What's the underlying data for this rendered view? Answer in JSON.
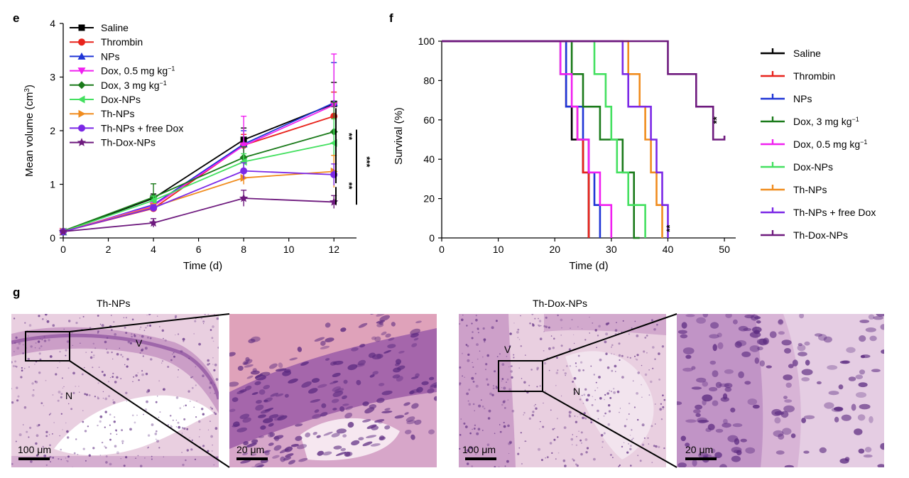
{
  "panels": {
    "e": "e",
    "f": "f",
    "g": "g"
  },
  "chart_data": [
    {
      "type": "line",
      "panel": "e",
      "xlabel": "Time (d)",
      "ylabel_main": "Mean volume (cm",
      "ylabel_sup": "3",
      "ylabel_end": ")",
      "xlim": [
        0,
        13
      ],
      "ylim": [
        0,
        4
      ],
      "xticks": [
        0,
        2,
        4,
        6,
        8,
        10,
        12
      ],
      "yticks": [
        0,
        1,
        2,
        3,
        4
      ],
      "x": [
        0,
        4,
        8,
        12
      ],
      "legend_position": "top-left",
      "series": [
        {
          "name": "Saline",
          "color": "#000000",
          "marker": "square",
          "values": [
            0.12,
            0.74,
            1.83,
            2.5
          ],
          "err": [
            0.02,
            0.08,
            0.22,
            0.4
          ]
        },
        {
          "name": "Thrombin",
          "color": "#e8231c",
          "marker": "circle",
          "values": [
            0.12,
            0.55,
            1.73,
            2.27
          ],
          "err": [
            0.02,
            0.06,
            0.2,
            0.45
          ]
        },
        {
          "name": "NPs",
          "color": "#1f35d6",
          "marker": "triangle-up",
          "values": [
            0.11,
            0.62,
            1.75,
            2.52
          ],
          "err": [
            0.02,
            0.07,
            0.25,
            0.75
          ]
        },
        {
          "name": "Dox, 0.5 mg kg",
          "name_sup": "−1",
          "color": "#f020f0",
          "marker": "triangle-down",
          "values": [
            0.12,
            0.6,
            1.72,
            2.48
          ],
          "err": [
            0.02,
            0.07,
            0.55,
            0.95
          ]
        },
        {
          "name": "Dox, 3 mg kg",
          "name_sup": "−1",
          "color": "#1a7a1a",
          "marker": "diamond",
          "values": [
            0.13,
            0.76,
            1.5,
            1.98
          ],
          "err": [
            0.02,
            0.25,
            0.2,
            0.55
          ]
        },
        {
          "name": "Dox-NPs",
          "color": "#44e060",
          "marker": "triangle-left",
          "values": [
            0.12,
            0.7,
            1.42,
            1.77
          ],
          "err": [
            0.02,
            0.08,
            0.15,
            0.45
          ]
        },
        {
          "name": "Th-NPs",
          "color": "#f08c1e",
          "marker": "triangle-right",
          "values": [
            0.12,
            0.58,
            1.12,
            1.24
          ],
          "err": [
            0.02,
            0.06,
            0.12,
            0.3
          ]
        },
        {
          "name": "Th-NPs + free Dox",
          "color": "#7b28e6",
          "marker": "circle",
          "values": [
            0.12,
            0.56,
            1.25,
            1.18
          ],
          "err": [
            0.02,
            0.06,
            0.15,
            0.2
          ]
        },
        {
          "name": "Th-Dox-NPs",
          "color": "#6e1a7e",
          "marker": "star",
          "values": [
            0.12,
            0.28,
            0.74,
            0.67
          ],
          "err": [
            0.02,
            0.08,
            0.15,
            0.12
          ]
        }
      ],
      "significance": [
        "**",
        "***",
        "**"
      ]
    },
    {
      "type": "line",
      "subtype": "step",
      "panel": "f",
      "xlabel": "Time (d)",
      "ylabel": "Survival (%)",
      "xlim": [
        0,
        52
      ],
      "ylim": [
        0,
        100
      ],
      "xticks": [
        0,
        10,
        20,
        30,
        40,
        50
      ],
      "yticks": [
        0,
        20,
        40,
        60,
        80,
        100
      ],
      "legend_position": "right",
      "series": [
        {
          "name": "Saline",
          "color": "#000000",
          "steps": [
            [
              0,
              100
            ],
            [
              21,
              100
            ],
            [
              21,
              83.3
            ],
            [
              22,
              83.3
            ],
            [
              22,
              66.7
            ],
            [
              23,
              66.7
            ],
            [
              23,
              50
            ],
            [
              25,
              50
            ],
            [
              25,
              33.3
            ],
            [
              26,
              33.3
            ],
            [
              26,
              0
            ]
          ]
        },
        {
          "name": "Thrombin",
          "color": "#e8231c",
          "steps": [
            [
              0,
              100
            ],
            [
              22,
              100
            ],
            [
              22,
              66.7
            ],
            [
              24,
              66.7
            ],
            [
              24,
              50
            ],
            [
              25,
              50
            ],
            [
              25,
              33.3
            ],
            [
              26,
              33.3
            ],
            [
              26,
              0
            ]
          ]
        },
        {
          "name": "NPs",
          "color": "#1f35d6",
          "steps": [
            [
              0,
              100
            ],
            [
              22,
              100
            ],
            [
              22,
              66.7
            ],
            [
              25,
              66.7
            ],
            [
              25,
              50
            ],
            [
              26,
              50
            ],
            [
              26,
              33.3
            ],
            [
              27,
              33.3
            ],
            [
              27,
              16.7
            ],
            [
              28,
              16.7
            ],
            [
              28,
              0
            ]
          ]
        },
        {
          "name": "Dox, 3 mg kg",
          "name_sup": "−1",
          "color": "#1a7a1a",
          "steps": [
            [
              0,
              100
            ],
            [
              23,
              100
            ],
            [
              23,
              83.3
            ],
            [
              25,
              83.3
            ],
            [
              25,
              66.7
            ],
            [
              28,
              66.7
            ],
            [
              28,
              50
            ],
            [
              32,
              50
            ],
            [
              32,
              33.3
            ],
            [
              34,
              33.3
            ],
            [
              34,
              0
            ],
            [
              35,
              0
            ]
          ]
        },
        {
          "name": "Dox, 0.5 mg kg",
          "name_sup": "−1",
          "color": "#f020f0",
          "steps": [
            [
              0,
              100
            ],
            [
              21,
              100
            ],
            [
              21,
              83.3
            ],
            [
              23,
              83.3
            ],
            [
              23,
              66.7
            ],
            [
              24,
              66.7
            ],
            [
              24,
              50
            ],
            [
              26,
              50
            ],
            [
              26,
              33.3
            ],
            [
              28,
              33.3
            ],
            [
              28,
              16.7
            ],
            [
              30,
              16.7
            ],
            [
              30,
              0
            ]
          ]
        },
        {
          "name": "Dox-NPs",
          "color": "#44e060",
          "steps": [
            [
              0,
              100
            ],
            [
              27,
              100
            ],
            [
              27,
              83.3
            ],
            [
              29,
              83.3
            ],
            [
              29,
              66.7
            ],
            [
              30,
              66.7
            ],
            [
              30,
              50
            ],
            [
              31,
              50
            ],
            [
              31,
              33.3
            ],
            [
              33,
              33.3
            ],
            [
              33,
              16.7
            ],
            [
              36,
              16.7
            ],
            [
              36,
              0
            ]
          ]
        },
        {
          "name": "Th-NPs",
          "color": "#f08c1e",
          "steps": [
            [
              0,
              100
            ],
            [
              33,
              100
            ],
            [
              33,
              83.3
            ],
            [
              35,
              83.3
            ],
            [
              35,
              66.7
            ],
            [
              36,
              66.7
            ],
            [
              36,
              50
            ],
            [
              37,
              50
            ],
            [
              37,
              33.3
            ],
            [
              38,
              33.3
            ],
            [
              38,
              16.7
            ],
            [
              39,
              16.7
            ],
            [
              39,
              0
            ]
          ]
        },
        {
          "name": "Th-NPs + free Dox",
          "color": "#7b28e6",
          "steps": [
            [
              0,
              100
            ],
            [
              32,
              100
            ],
            [
              32,
              83.3
            ],
            [
              33,
              83.3
            ],
            [
              33,
              66.7
            ],
            [
              37,
              66.7
            ],
            [
              37,
              50
            ],
            [
              38,
              50
            ],
            [
              38,
              33.3
            ],
            [
              39,
              33.3
            ],
            [
              39,
              16.7
            ],
            [
              40,
              16.7
            ],
            [
              40,
              0
            ]
          ]
        },
        {
          "name": "Th-Dox-NPs",
          "color": "#6e1a7e",
          "steps": [
            [
              0,
              100
            ],
            [
              40,
              100
            ],
            [
              40,
              83.3
            ],
            [
              45,
              83.3
            ],
            [
              45,
              66.7
            ],
            [
              48,
              66.7
            ],
            [
              48,
              50
            ],
            [
              50,
              50
            ],
            [
              50,
              52
            ]
          ]
        }
      ],
      "significance": [
        "**",
        "**"
      ]
    }
  ],
  "histology": [
    {
      "title": "Th-NPs",
      "labels": [
        "V",
        "N"
      ],
      "scale_wide": "100 μm",
      "scale_zoom": "20 μm"
    },
    {
      "title": "Th-Dox-NPs",
      "labels": [
        "V",
        "N"
      ],
      "scale_wide": "100 μm",
      "scale_zoom": "20 μm"
    }
  ],
  "colors": {
    "tissue_light": "#e9cfe0",
    "tissue_mid": "#c898c4",
    "tissue_dark": "#8a4f9e",
    "nuclei": "#5b2a80"
  }
}
